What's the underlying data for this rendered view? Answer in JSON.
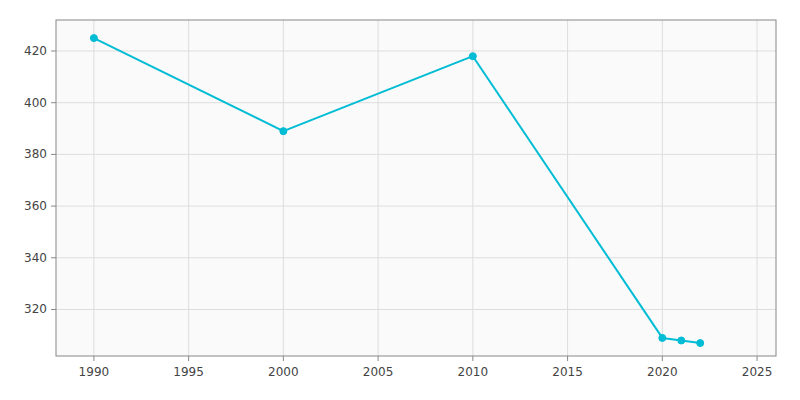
{
  "chart_data": {
    "type": "line",
    "x": [
      1990,
      2000,
      2010,
      2020,
      2021,
      2022
    ],
    "values": [
      425,
      389,
      418,
      309,
      308,
      307
    ],
    "color": "#00BCD4",
    "marker": "circle",
    "xlim": [
      1988,
      2026
    ],
    "ylim": [
      302,
      432
    ],
    "xticks": [
      1990,
      1995,
      2000,
      2005,
      2010,
      2015,
      2020,
      2025
    ],
    "yticks": [
      320,
      340,
      360,
      380,
      400,
      420
    ],
    "grid": true
  }
}
